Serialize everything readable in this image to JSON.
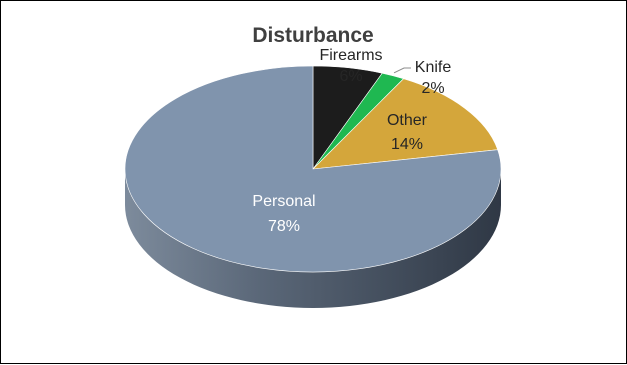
{
  "chart_data": {
    "type": "pie",
    "title": "Disturbance",
    "categories": [
      "Firearms",
      "Knife",
      "Other",
      "Personal"
    ],
    "values": [
      6,
      2,
      14,
      78
    ],
    "value_labels": [
      "6%",
      "2%",
      "14%",
      "78%"
    ],
    "unit": "%",
    "style": "3d",
    "legend": "none",
    "colors": [
      "#1c1c1c",
      "#1fb851",
      "#d4a63b",
      "#8094ad"
    ],
    "side_colors": [
      "#0e0e0e",
      "#14823a",
      "#a07a25",
      "#505d6e"
    ],
    "label_colors": [
      "#262626",
      "#262626",
      "#262626",
      "#ffffff"
    ]
  }
}
